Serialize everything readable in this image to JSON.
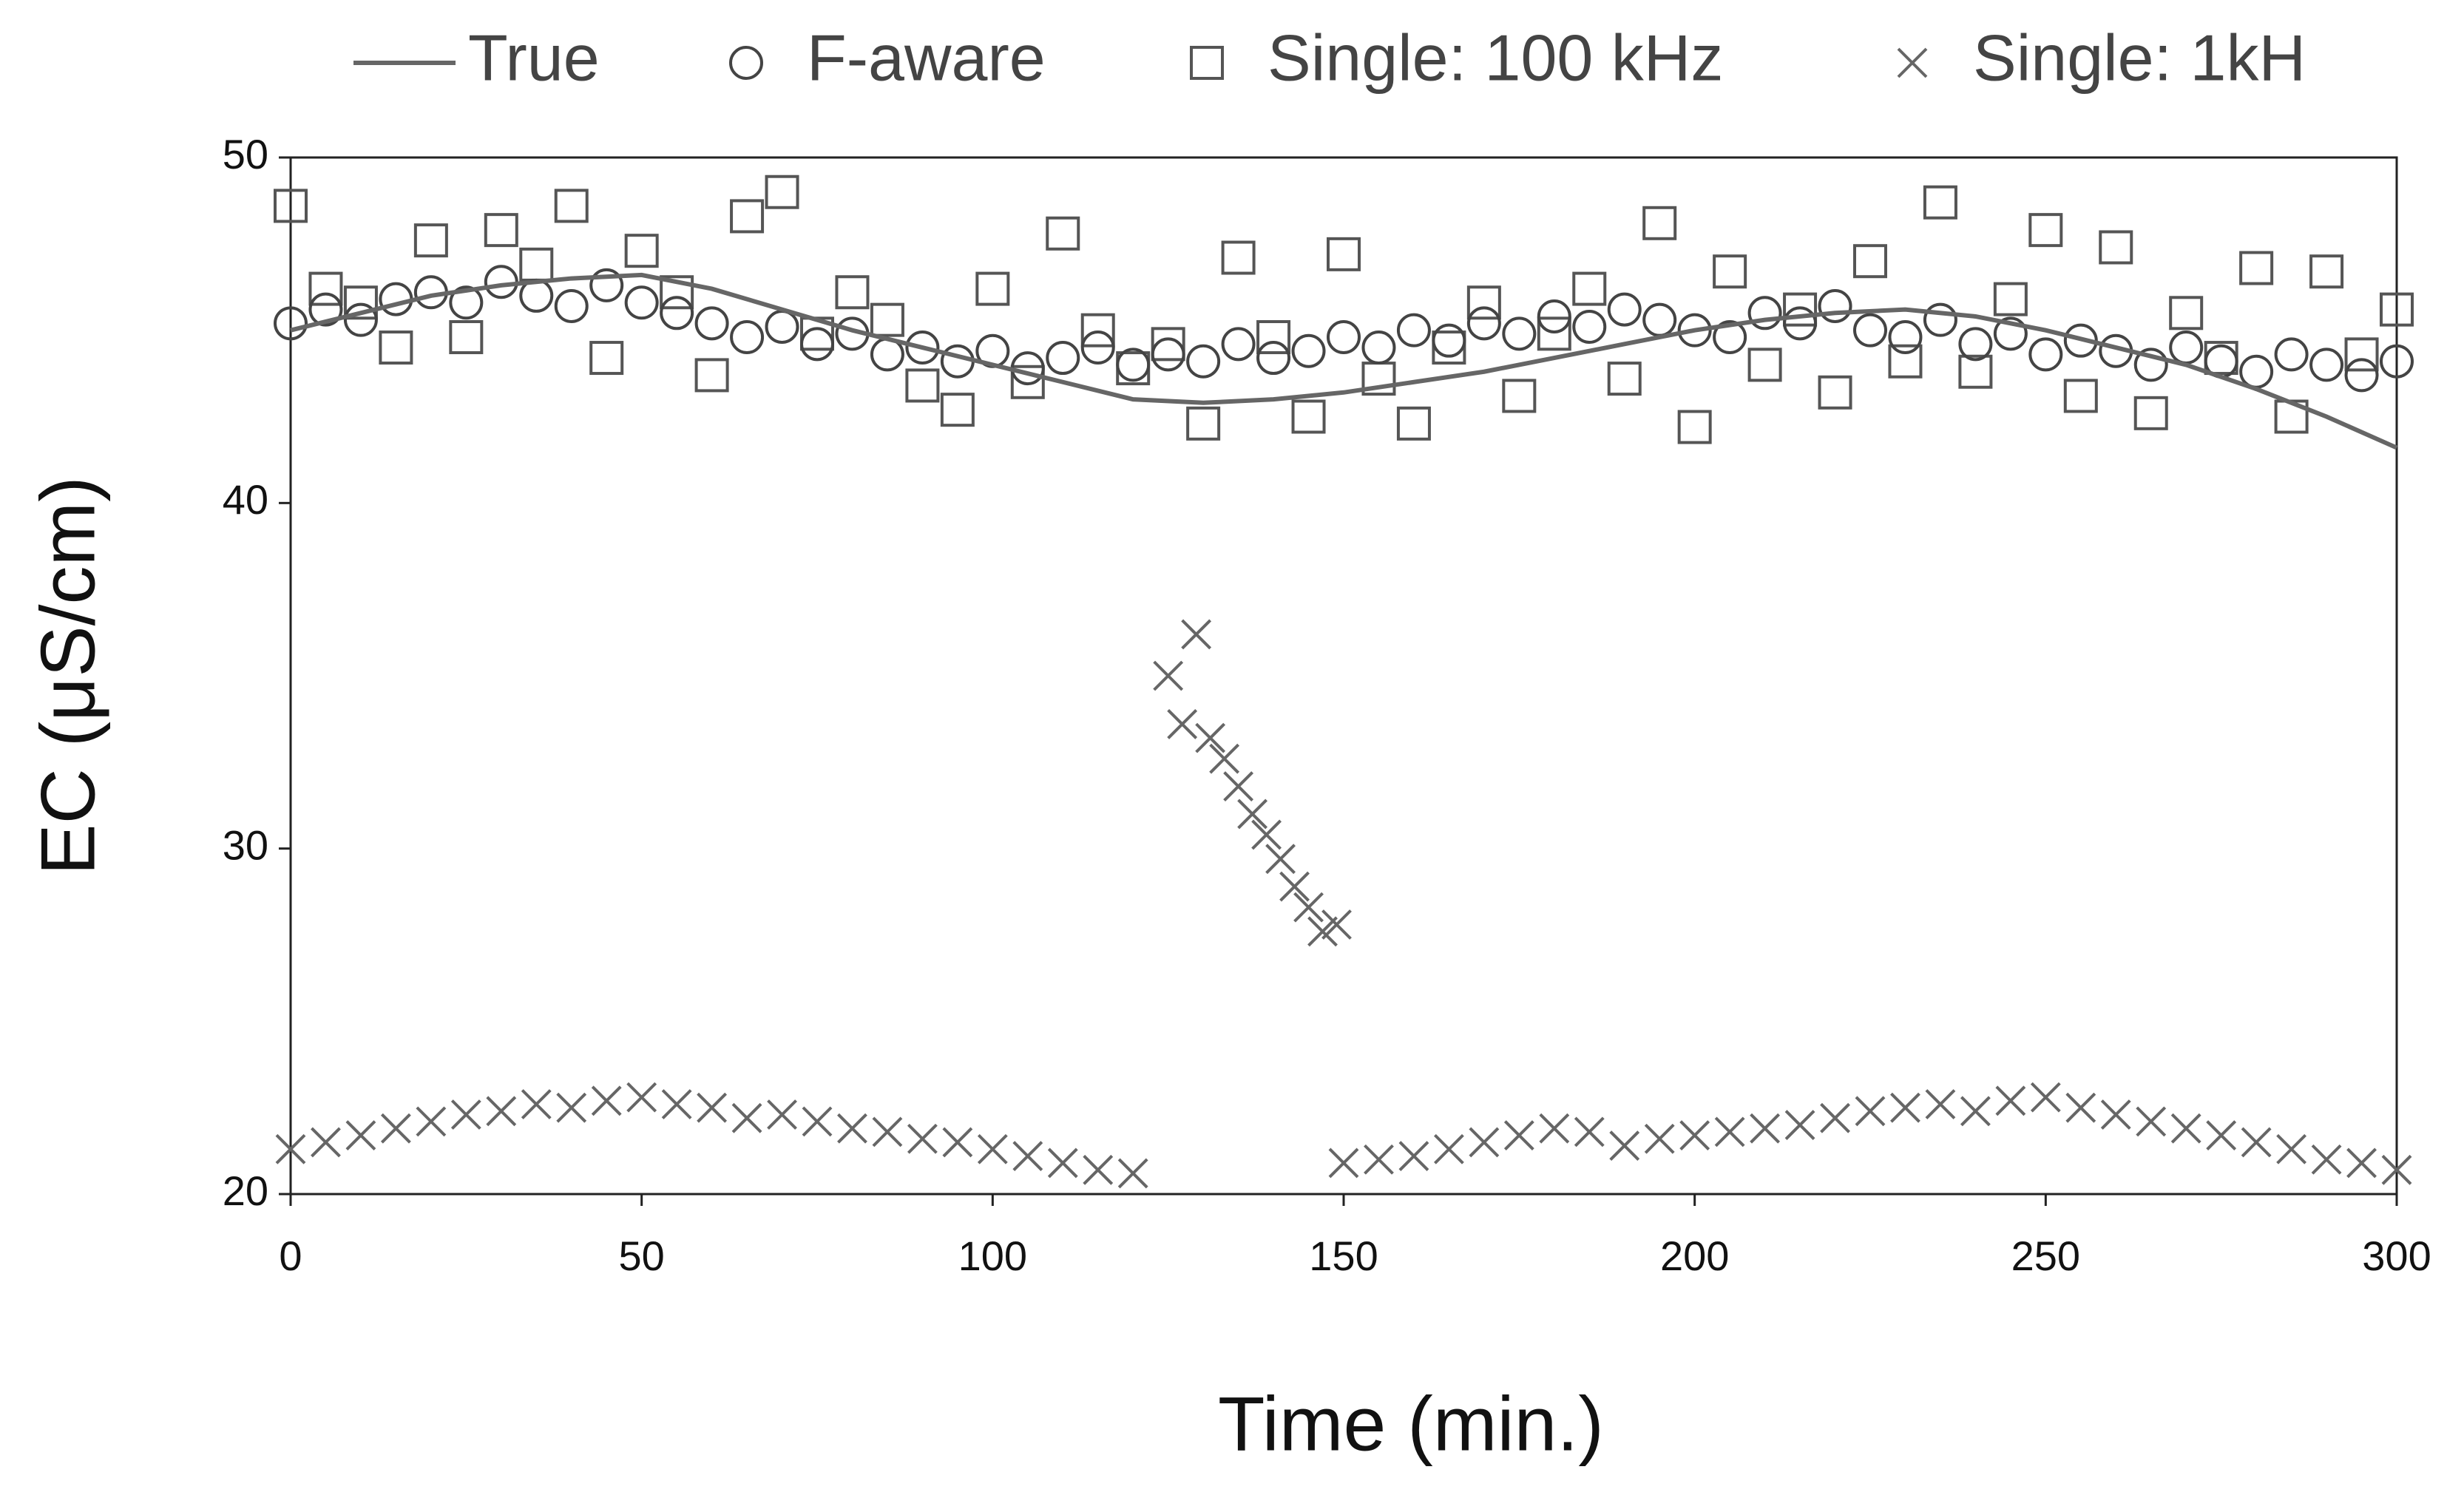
{
  "chart_data": {
    "type": "scatter",
    "xlabel": "Time (min.)",
    "ylabel": "EC (μS/cm)",
    "xlim": [
      0,
      300
    ],
    "ylim": [
      20,
      50
    ],
    "xticks": [
      0,
      50,
      100,
      150,
      200,
      250,
      300
    ],
    "yticks": [
      20,
      30,
      40,
      50
    ],
    "series": [
      {
        "name": "True",
        "marker": "line",
        "color": "#666666",
        "x": [
          0,
          10,
          20,
          30,
          40,
          50,
          60,
          70,
          80,
          90,
          100,
          110,
          120,
          130,
          140,
          150,
          160,
          170,
          180,
          190,
          200,
          210,
          220,
          230,
          240,
          250,
          260,
          270,
          280,
          290,
          300
        ],
        "values": [
          45.0,
          45.5,
          46.0,
          46.3,
          46.5,
          46.6,
          46.2,
          45.6,
          45.0,
          44.5,
          44.0,
          43.5,
          43.0,
          42.9,
          43.0,
          43.2,
          43.5,
          43.8,
          44.2,
          44.6,
          45.0,
          45.3,
          45.5,
          45.6,
          45.4,
          45.0,
          44.5,
          44.0,
          43.3,
          42.5,
          41.6
        ]
      },
      {
        "name": "F-aware",
        "marker": "circle",
        "color": "#444444",
        "x": [
          0,
          5,
          10,
          15,
          20,
          25,
          30,
          35,
          40,
          45,
          50,
          55,
          60,
          65,
          70,
          75,
          80,
          85,
          90,
          95,
          100,
          105,
          110,
          115,
          120,
          125,
          130,
          135,
          140,
          145,
          150,
          155,
          160,
          165,
          170,
          175,
          180,
          185,
          190,
          195,
          200,
          205,
          210,
          215,
          220,
          225,
          230,
          235,
          240,
          245,
          250,
          255,
          260,
          265,
          270,
          275,
          280,
          285,
          290,
          295,
          300
        ],
        "values": [
          45.2,
          45.6,
          45.3,
          45.9,
          46.1,
          45.8,
          46.4,
          46.0,
          45.7,
          46.3,
          45.8,
          45.5,
          45.2,
          44.8,
          45.1,
          44.6,
          44.9,
          44.3,
          44.5,
          44.1,
          44.4,
          43.9,
          44.2,
          44.5,
          44.0,
          44.3,
          44.1,
          44.6,
          44.2,
          44.4,
          44.8,
          44.5,
          45.0,
          44.7,
          45.2,
          44.9,
          45.4,
          45.1,
          45.6,
          45.3,
          45.0,
          44.8,
          45.5,
          45.2,
          45.7,
          45.0,
          44.8,
          45.3,
          44.6,
          44.9,
          44.3,
          44.7,
          44.4,
          44.0,
          44.5,
          44.1,
          43.8,
          44.3,
          44.0,
          43.7,
          44.1
        ]
      },
      {
        "name": "Single: 100 kHz",
        "marker": "square",
        "color": "#555555",
        "x": [
          0,
          5,
          10,
          15,
          20,
          25,
          30,
          35,
          40,
          45,
          50,
          55,
          60,
          65,
          70,
          75,
          80,
          85,
          90,
          95,
          100,
          105,
          110,
          115,
          120,
          125,
          130,
          135,
          140,
          145,
          150,
          155,
          160,
          165,
          170,
          175,
          180,
          185,
          190,
          195,
          200,
          205,
          210,
          215,
          220,
          225,
          230,
          235,
          240,
          245,
          250,
          255,
          260,
          265,
          270,
          275,
          280,
          285,
          290,
          295,
          300
        ],
        "values": [
          48.6,
          46.2,
          45.8,
          44.5,
          47.6,
          44.8,
          47.9,
          46.9,
          48.6,
          44.2,
          47.3,
          46.1,
          43.7,
          48.3,
          49.0,
          44.9,
          46.1,
          45.3,
          43.4,
          42.7,
          46.2,
          43.5,
          47.8,
          45.0,
          43.9,
          44.6,
          42.3,
          47.1,
          44.8,
          42.5,
          47.2,
          43.6,
          42.3,
          44.5,
          45.8,
          43.1,
          44.9,
          46.2,
          43.6,
          48.1,
          42.2,
          46.7,
          44.0,
          45.6,
          43.2,
          47.0,
          44.1,
          48.7,
          43.8,
          45.9,
          47.9,
          43.1,
          47.4,
          42.6,
          45.5,
          44.2,
          46.8,
          42.5,
          46.7,
          44.3,
          45.6
        ]
      },
      {
        "name": "Single: 1kH",
        "marker": "x",
        "color": "#666666",
        "x": [
          0,
          5,
          10,
          15,
          20,
          25,
          30,
          35,
          40,
          45,
          50,
          55,
          60,
          65,
          70,
          75,
          80,
          85,
          90,
          95,
          100,
          105,
          110,
          115,
          120,
          125,
          127,
          129,
          131,
          133,
          135,
          137,
          139,
          141,
          143,
          145,
          147,
          149,
          150,
          155,
          160,
          165,
          170,
          175,
          180,
          185,
          190,
          195,
          200,
          205,
          210,
          215,
          220,
          225,
          230,
          235,
          240,
          245,
          250,
          255,
          260,
          265,
          270,
          275,
          280,
          285,
          290,
          295,
          300
        ],
        "values": [
          21.3,
          21.5,
          21.7,
          21.9,
          22.1,
          22.3,
          22.4,
          22.6,
          22.5,
          22.7,
          22.8,
          22.6,
          22.5,
          22.2,
          22.3,
          22.1,
          21.9,
          21.8,
          21.6,
          21.5,
          21.3,
          21.1,
          20.9,
          20.7,
          20.6,
          35.0,
          33.6,
          36.2,
          33.2,
          32.6,
          31.8,
          31.0,
          30.4,
          29.7,
          28.9,
          28.3,
          27.6,
          27.8,
          20.9,
          21.0,
          21.1,
          21.3,
          21.5,
          21.7,
          21.9,
          21.8,
          21.4,
          21.6,
          21.7,
          21.8,
          21.9,
          22.0,
          22.2,
          22.4,
          22.5,
          22.6,
          22.4,
          22.7,
          22.8,
          22.5,
          22.3,
          22.1,
          21.9,
          21.7,
          21.5,
          21.3,
          21.0,
          20.9,
          20.7
        ]
      }
    ]
  }
}
